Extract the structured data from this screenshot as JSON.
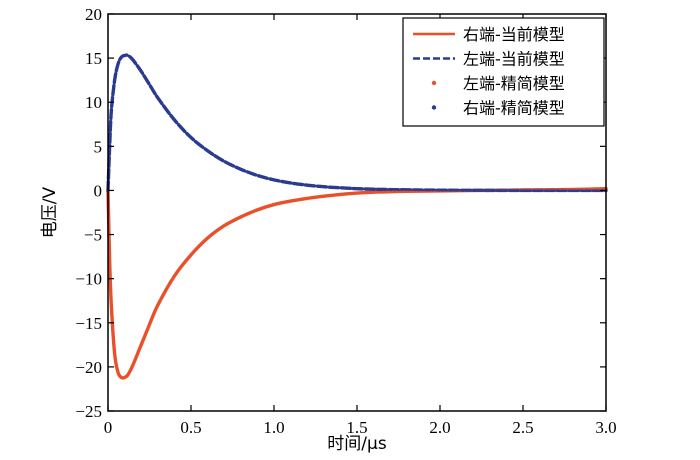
{
  "chart_data": {
    "type": "line",
    "xlabel": "时间/μs",
    "ylabel": "电压/V",
    "xlim": [
      0,
      3.0
    ],
    "ylim": [
      -25,
      20
    ],
    "xticks": [
      0,
      0.5,
      1.0,
      1.5,
      2.0,
      2.5,
      3.0
    ],
    "xtick_labels": [
      "0",
      "0.5",
      "1.0",
      "1.5",
      "2.0",
      "2.5",
      "3.0"
    ],
    "yticks": [
      20,
      15,
      10,
      5,
      0,
      -5,
      -10,
      -15,
      -20,
      -25
    ],
    "ytick_labels": [
      "20",
      "15",
      "10",
      "5",
      "0",
      "−5",
      "−10",
      "−15",
      "−20",
      "−25"
    ],
    "grid": false,
    "legend_position": "top-right",
    "x": [
      0,
      0.01,
      0.02,
      0.04,
      0.06,
      0.08,
      0.1,
      0.12,
      0.15,
      0.2,
      0.25,
      0.3,
      0.4,
      0.5,
      0.6,
      0.7,
      0.8,
      0.9,
      1.0,
      1.1,
      1.2,
      1.3,
      1.4,
      1.5,
      1.6,
      1.8,
      2.0,
      2.25,
      2.5,
      2.75,
      3.0
    ],
    "series": [
      {
        "name": "右端-当前模型",
        "style": "solid",
        "color": "#e8512a",
        "values": [
          0,
          -8,
          -13,
          -18.5,
          -20.6,
          -21.2,
          -21.2,
          -20.9,
          -19.8,
          -17.5,
          -15.2,
          -13.0,
          -9.7,
          -7.3,
          -5.4,
          -4.0,
          -3.0,
          -2.2,
          -1.6,
          -1.2,
          -0.9,
          -0.65,
          -0.45,
          -0.3,
          -0.2,
          -0.1,
          -0.05,
          0,
          0.05,
          0.1,
          0.2
        ]
      },
      {
        "name": "左端-当前模型",
        "style": "dashed",
        "color": "#2b3b8f",
        "values": [
          0,
          5,
          9,
          12.5,
          14.3,
          15.1,
          15.3,
          15.3,
          14.8,
          13.5,
          12.0,
          10.5,
          8.0,
          6.0,
          4.5,
          3.3,
          2.4,
          1.7,
          1.2,
          0.85,
          0.6,
          0.42,
          0.3,
          0.2,
          0.14,
          0.07,
          0.03,
          0.01,
          0,
          0,
          0
        ]
      },
      {
        "name": "左端-精简模型",
        "style": "dots",
        "color": "#e8512a",
        "values": [
          0,
          -8,
          -13,
          -18.5,
          -20.6,
          -21.2,
          -21.2,
          -20.9,
          -19.8,
          -17.5,
          -15.2,
          -13.0,
          -9.7,
          -7.3,
          -5.4,
          -4.0,
          -3.0,
          -2.2,
          -1.6,
          -1.2,
          -0.9,
          -0.65,
          -0.45,
          -0.3,
          -0.2,
          -0.1,
          -0.05,
          0,
          0.05,
          0.1,
          0.2
        ]
      },
      {
        "name": "右端-精简模型",
        "style": "dots",
        "color": "#2b3b8f",
        "values": [
          0,
          5,
          9,
          12.5,
          14.3,
          15.1,
          15.3,
          15.3,
          14.8,
          13.5,
          12.0,
          10.5,
          8.0,
          6.0,
          4.5,
          3.3,
          2.4,
          1.7,
          1.2,
          0.85,
          0.6,
          0.42,
          0.3,
          0.2,
          0.14,
          0.07,
          0.03,
          0.01,
          0,
          0,
          0
        ]
      }
    ]
  }
}
